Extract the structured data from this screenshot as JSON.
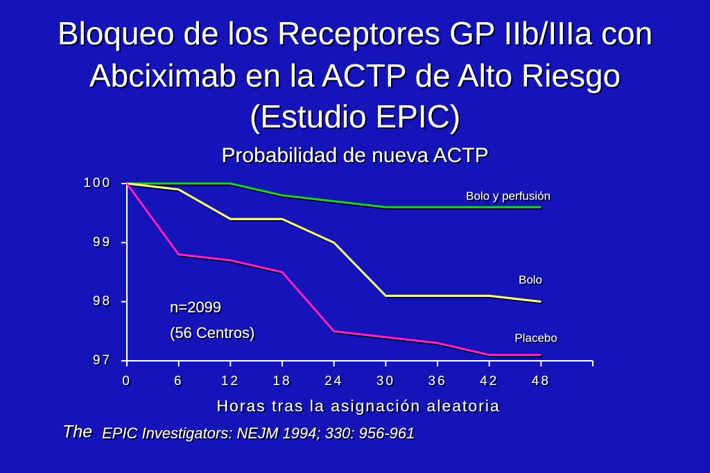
{
  "chart_data": {
    "type": "line",
    "title_lines": [
      "Bloqueo de los Receptores GP IIb/IIIa con",
      "Abciximab en la ACTP de Alto Riesgo",
      "(Estudio EPIC)"
    ],
    "subtitle": "Probabilidad de nueva ACTP",
    "x_label": "Horas tras la asignación aleatoria",
    "x": [
      0,
      6,
      12,
      18,
      24,
      30,
      36,
      42,
      48
    ],
    "series": [
      {
        "name": "Bolo y perfusión",
        "color": "#22cc33",
        "values": [
          100,
          100,
          100,
          99.8,
          99.7,
          99.6,
          99.6,
          99.6,
          99.6
        ]
      },
      {
        "name": "Bolo",
        "color": "#ffff88",
        "values": [
          100,
          99.9,
          99.4,
          99.4,
          99.0,
          98.1,
          98.1,
          98.1,
          98.0
        ]
      },
      {
        "name": "Placebo",
        "color": "#ff22cc",
        "values": [
          100,
          98.8,
          98.7,
          98.5,
          97.5,
          97.4,
          97.3,
          97.1,
          97.1
        ]
      }
    ],
    "xlim": [
      0,
      54
    ],
    "xticks": [
      0,
      6,
      12,
      18,
      24,
      30,
      36,
      42,
      48
    ],
    "ylim": [
      97,
      100
    ],
    "yticks": [
      97,
      98,
      99,
      100
    ],
    "annotations": [
      "n=2099",
      "(56 Centros)"
    ],
    "citation_lead": "The",
    "citation": "EPIC Investigators: NEJM 1994; 330: 956-961"
  }
}
